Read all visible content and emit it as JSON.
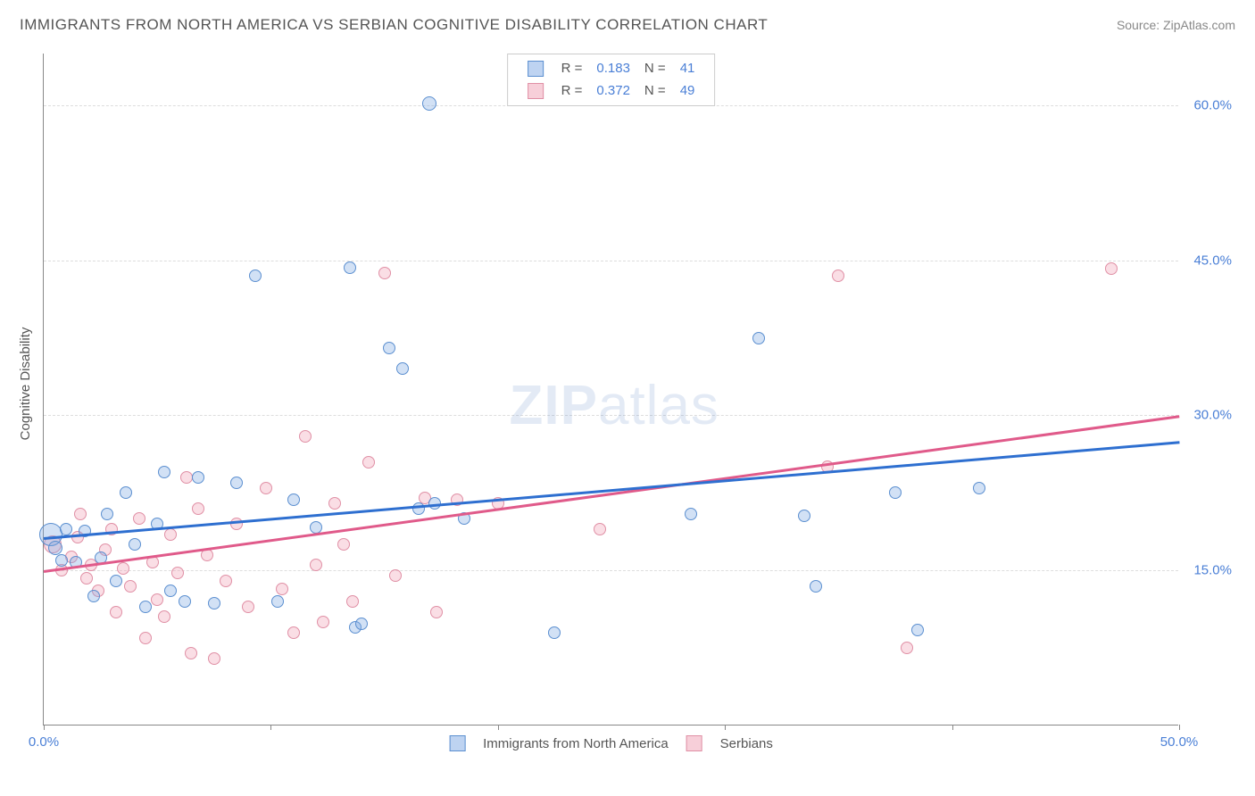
{
  "title": "IMMIGRANTS FROM NORTH AMERICA VS SERBIAN COGNITIVE DISABILITY CORRELATION CHART",
  "source": "Source: ZipAtlas.com",
  "ylabel": "Cognitive Disability",
  "watermark": {
    "zip": "ZIP",
    "atlas": "atlas"
  },
  "chart": {
    "type": "scatter",
    "xlim": [
      0,
      50
    ],
    "ylim": [
      0,
      65
    ],
    "xticks": [
      0,
      10,
      20,
      30,
      40,
      50
    ],
    "xtick_labels": {
      "0": "0.0%",
      "50": "50.0%"
    },
    "yticks": [
      15,
      30,
      45,
      60
    ],
    "ytick_labels": {
      "15": "15.0%",
      "30": "30.0%",
      "45": "45.0%",
      "60": "60.0%"
    },
    "grid_color": "#dddddd",
    "axis_color": "#888888",
    "background_color": "#ffffff",
    "label_color": "#4a7fd6",
    "marker_base_size": 14,
    "series": {
      "blue": {
        "label": "Immigrants from North America",
        "R": "0.183",
        "N": "41",
        "fill": "rgba(125,168,227,0.35)",
        "stroke": "#5b8fd0",
        "trend": {
          "x1": 0,
          "y1": 18.2,
          "x2": 50,
          "y2": 27.5,
          "color": "#2e6fd0"
        },
        "points": [
          {
            "x": 0.3,
            "y": 18.5,
            "s": 26
          },
          {
            "x": 0.5,
            "y": 17.2,
            "s": 16
          },
          {
            "x": 0.8,
            "y": 16.0,
            "s": 14
          },
          {
            "x": 1.0,
            "y": 19.0,
            "s": 14
          },
          {
            "x": 1.4,
            "y": 15.8,
            "s": 14
          },
          {
            "x": 1.8,
            "y": 18.8,
            "s": 14
          },
          {
            "x": 2.2,
            "y": 12.5,
            "s": 14
          },
          {
            "x": 2.5,
            "y": 16.2,
            "s": 14
          },
          {
            "x": 2.8,
            "y": 20.5,
            "s": 14
          },
          {
            "x": 3.2,
            "y": 14.0,
            "s": 14
          },
          {
            "x": 3.6,
            "y": 22.5,
            "s": 14
          },
          {
            "x": 4.0,
            "y": 17.5,
            "s": 14
          },
          {
            "x": 4.5,
            "y": 11.5,
            "s": 14
          },
          {
            "x": 5.0,
            "y": 19.5,
            "s": 14
          },
          {
            "x": 5.3,
            "y": 24.5,
            "s": 14
          },
          {
            "x": 5.6,
            "y": 13.0,
            "s": 14
          },
          {
            "x": 6.2,
            "y": 12.0,
            "s": 14
          },
          {
            "x": 6.8,
            "y": 24.0,
            "s": 14
          },
          {
            "x": 7.5,
            "y": 11.8,
            "s": 14
          },
          {
            "x": 8.5,
            "y": 23.5,
            "s": 14
          },
          {
            "x": 9.3,
            "y": 43.5,
            "s": 14
          },
          {
            "x": 10.3,
            "y": 12.0,
            "s": 14
          },
          {
            "x": 11.0,
            "y": 21.8,
            "s": 14
          },
          {
            "x": 12.0,
            "y": 19.2,
            "s": 14
          },
          {
            "x": 13.5,
            "y": 44.3,
            "s": 14
          },
          {
            "x": 13.7,
            "y": 9.5,
            "s": 14
          },
          {
            "x": 14.0,
            "y": 9.8,
            "s": 14
          },
          {
            "x": 15.2,
            "y": 36.5,
            "s": 14
          },
          {
            "x": 15.8,
            "y": 34.5,
            "s": 14
          },
          {
            "x": 16.5,
            "y": 21.0,
            "s": 14
          },
          {
            "x": 17.0,
            "y": 60.2,
            "s": 16
          },
          {
            "x": 17.2,
            "y": 21.5,
            "s": 14
          },
          {
            "x": 18.5,
            "y": 20.0,
            "s": 14
          },
          {
            "x": 22.5,
            "y": 9.0,
            "s": 14
          },
          {
            "x": 28.5,
            "y": 20.5,
            "s": 14
          },
          {
            "x": 31.5,
            "y": 37.5,
            "s": 14
          },
          {
            "x": 33.5,
            "y": 20.3,
            "s": 14
          },
          {
            "x": 34.0,
            "y": 13.5,
            "s": 14
          },
          {
            "x": 37.5,
            "y": 22.5,
            "s": 14
          },
          {
            "x": 38.5,
            "y": 9.2,
            "s": 14
          },
          {
            "x": 41.2,
            "y": 23.0,
            "s": 14
          }
        ]
      },
      "pink": {
        "label": "Serbians",
        "R": "0.372",
        "N": "49",
        "fill": "rgba(240,160,180,0.35)",
        "stroke": "#e08fa5",
        "trend": {
          "x1": 0,
          "y1": 15.0,
          "x2": 50,
          "y2": 30.0,
          "color": "#e05a8a"
        },
        "points": [
          {
            "x": 0.4,
            "y": 17.5,
            "s": 20
          },
          {
            "x": 0.8,
            "y": 15.0,
            "s": 14
          },
          {
            "x": 1.2,
            "y": 16.3,
            "s": 14
          },
          {
            "x": 1.5,
            "y": 18.2,
            "s": 14
          },
          {
            "x": 1.6,
            "y": 20.5,
            "s": 14
          },
          {
            "x": 1.9,
            "y": 14.2,
            "s": 14
          },
          {
            "x": 2.1,
            "y": 15.5,
            "s": 14
          },
          {
            "x": 2.4,
            "y": 13.0,
            "s": 14
          },
          {
            "x": 2.7,
            "y": 17.0,
            "s": 14
          },
          {
            "x": 3.0,
            "y": 19.0,
            "s": 14
          },
          {
            "x": 3.2,
            "y": 11.0,
            "s": 14
          },
          {
            "x": 3.5,
            "y": 15.2,
            "s": 14
          },
          {
            "x": 3.8,
            "y": 13.5,
            "s": 14
          },
          {
            "x": 4.2,
            "y": 20.0,
            "s": 14
          },
          {
            "x": 4.5,
            "y": 8.5,
            "s": 14
          },
          {
            "x": 4.8,
            "y": 15.8,
            "s": 14
          },
          {
            "x": 5.0,
            "y": 12.2,
            "s": 14
          },
          {
            "x": 5.3,
            "y": 10.5,
            "s": 14
          },
          {
            "x": 5.6,
            "y": 18.5,
            "s": 14
          },
          {
            "x": 5.9,
            "y": 14.8,
            "s": 14
          },
          {
            "x": 6.3,
            "y": 24.0,
            "s": 14
          },
          {
            "x": 6.5,
            "y": 7.0,
            "s": 14
          },
          {
            "x": 6.8,
            "y": 21.0,
            "s": 14
          },
          {
            "x": 7.2,
            "y": 16.5,
            "s": 14
          },
          {
            "x": 7.5,
            "y": 6.5,
            "s": 14
          },
          {
            "x": 8.0,
            "y": 14.0,
            "s": 14
          },
          {
            "x": 8.5,
            "y": 19.5,
            "s": 14
          },
          {
            "x": 9.0,
            "y": 11.5,
            "s": 14
          },
          {
            "x": 9.8,
            "y": 23.0,
            "s": 14
          },
          {
            "x": 10.5,
            "y": 13.2,
            "s": 14
          },
          {
            "x": 11.0,
            "y": 9.0,
            "s": 14
          },
          {
            "x": 11.5,
            "y": 28.0,
            "s": 14
          },
          {
            "x": 12.0,
            "y": 15.5,
            "s": 14
          },
          {
            "x": 12.3,
            "y": 10.0,
            "s": 14
          },
          {
            "x": 12.8,
            "y": 21.5,
            "s": 14
          },
          {
            "x": 13.2,
            "y": 17.5,
            "s": 14
          },
          {
            "x": 13.6,
            "y": 12.0,
            "s": 14
          },
          {
            "x": 14.3,
            "y": 25.5,
            "s": 14
          },
          {
            "x": 15.0,
            "y": 43.8,
            "s": 14
          },
          {
            "x": 15.5,
            "y": 14.5,
            "s": 14
          },
          {
            "x": 16.8,
            "y": 22.0,
            "s": 14
          },
          {
            "x": 17.3,
            "y": 11.0,
            "s": 14
          },
          {
            "x": 18.2,
            "y": 21.8,
            "s": 14
          },
          {
            "x": 20.0,
            "y": 21.5,
            "s": 14
          },
          {
            "x": 24.5,
            "y": 19.0,
            "s": 14
          },
          {
            "x": 34.5,
            "y": 25.0,
            "s": 14
          },
          {
            "x": 35.0,
            "y": 43.5,
            "s": 14
          },
          {
            "x": 38.0,
            "y": 7.5,
            "s": 14
          },
          {
            "x": 47.0,
            "y": 44.2,
            "s": 14
          }
        ]
      }
    }
  },
  "legend_top": {
    "rows": [
      {
        "swatch": "blue",
        "r_label": "R  =",
        "r": "0.183",
        "n_label": "N  =",
        "n": "41"
      },
      {
        "swatch": "pink",
        "r_label": "R  =",
        "r": "0.372",
        "n_label": "N  =",
        "n": "49"
      }
    ]
  },
  "legend_bottom": {
    "items": [
      {
        "swatch": "blue",
        "label": "Immigrants from North America"
      },
      {
        "swatch": "pink",
        "label": "Serbians"
      }
    ]
  }
}
